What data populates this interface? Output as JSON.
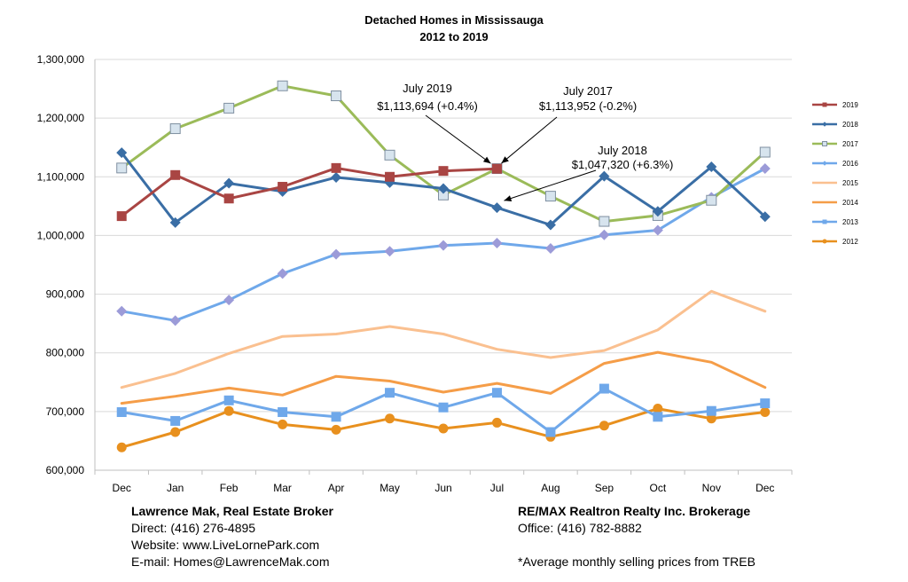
{
  "chart_data": {
    "type": "line",
    "title": "Detached Homes in Mississauga",
    "subtitle": "2012 to 2019",
    "categories": [
      "Dec",
      "Jan",
      "Feb",
      "Mar",
      "Apr",
      "May",
      "Jun",
      "Jul",
      "Aug",
      "Sep",
      "Oct",
      "Nov",
      "Dec"
    ],
    "ylim": [
      600000,
      1300000
    ],
    "yticks": [
      600000,
      700000,
      800000,
      900000,
      1000000,
      1100000,
      1200000,
      1300000
    ],
    "ytick_labels": [
      "600,000",
      "700,000",
      "800,000",
      "900,000",
      "1,000,000",
      "1,100,000",
      "1,200,000",
      "1,300,000"
    ],
    "grid": true,
    "legend_position": "right",
    "series": [
      {
        "name": "2019",
        "color": "#A94543",
        "marker": "square",
        "values": [
          1033000,
          1103000,
          1063000,
          1083000,
          1115000,
          1100000,
          1110000,
          1113694,
          null,
          null,
          null,
          null,
          null
        ]
      },
      {
        "name": "2018",
        "color": "#3A6EA5",
        "marker": "diamond",
        "values": [
          1141000,
          1022000,
          1089000,
          1075000,
          1099000,
          1090000,
          1080000,
          1047320,
          1018000,
          1101000,
          1041000,
          1117000,
          1032000
        ]
      },
      {
        "name": "2017",
        "color": "#9BBB59",
        "marker": "square-open",
        "values": [
          1115000,
          1182000,
          1217000,
          1255000,
          1238000,
          1137000,
          1069000,
          1113952,
          1067000,
          1024000,
          1034000,
          1060000,
          1142000
        ]
      },
      {
        "name": "2016",
        "color": "#6FA8EA",
        "marker": "diamond",
        "values": [
          871000,
          855000,
          890000,
          935000,
          968000,
          973000,
          983000,
          987000,
          978000,
          1001000,
          1009000,
          1065000,
          1114000
        ]
      },
      {
        "name": "2015",
        "color": "#FAC090",
        "marker": "none",
        "values": [
          741000,
          765000,
          799000,
          828000,
          832000,
          845000,
          832000,
          806000,
          792000,
          804000,
          839000,
          905000,
          871000
        ]
      },
      {
        "name": "2014",
        "color": "#F59D48",
        "marker": "none",
        "values": [
          714000,
          726000,
          740000,
          728000,
          760000,
          752000,
          733000,
          748000,
          731000,
          782000,
          801000,
          784000,
          741000
        ]
      },
      {
        "name": "2013",
        "color": "#6FA8EA",
        "marker": "square",
        "values": [
          699000,
          684000,
          719000,
          699000,
          691000,
          732000,
          707000,
          732000,
          665000,
          739000,
          691000,
          701000,
          714000
        ]
      },
      {
        "name": "2012",
        "color": "#E8901E",
        "marker": "circle",
        "values": [
          639000,
          665000,
          701000,
          678000,
          669000,
          688000,
          671000,
          681000,
          657000,
          676000,
          705000,
          688000,
          699000
        ]
      }
    ],
    "annotations": [
      {
        "line1": "July 2019",
        "line2": "$1,113,694 (+0.4%)",
        "target_index": 7,
        "target_value": 1113694
      },
      {
        "line1": "July 2017",
        "line2": "$1,113,952 (-0.2%)",
        "target_index": 7,
        "target_value": 1113952
      },
      {
        "line1": "July 2018",
        "line2": "$1,047,320 (+6.3%)",
        "target_index": 7,
        "target_value": 1047320
      }
    ]
  },
  "footer": {
    "broker_name": "Lawrence Mak, Real Estate Broker",
    "direct": "Direct:  (416) 276-4895",
    "website": "Website:  www.LiveLornePark.com",
    "email": "E-mail:  Homes@LawrenceMak.com",
    "brokerage": "RE/MAX Realtron Realty Inc. Brokerage",
    "office": "Office: (416) 782-8882",
    "note": "*Average monthly selling prices from TREB"
  }
}
